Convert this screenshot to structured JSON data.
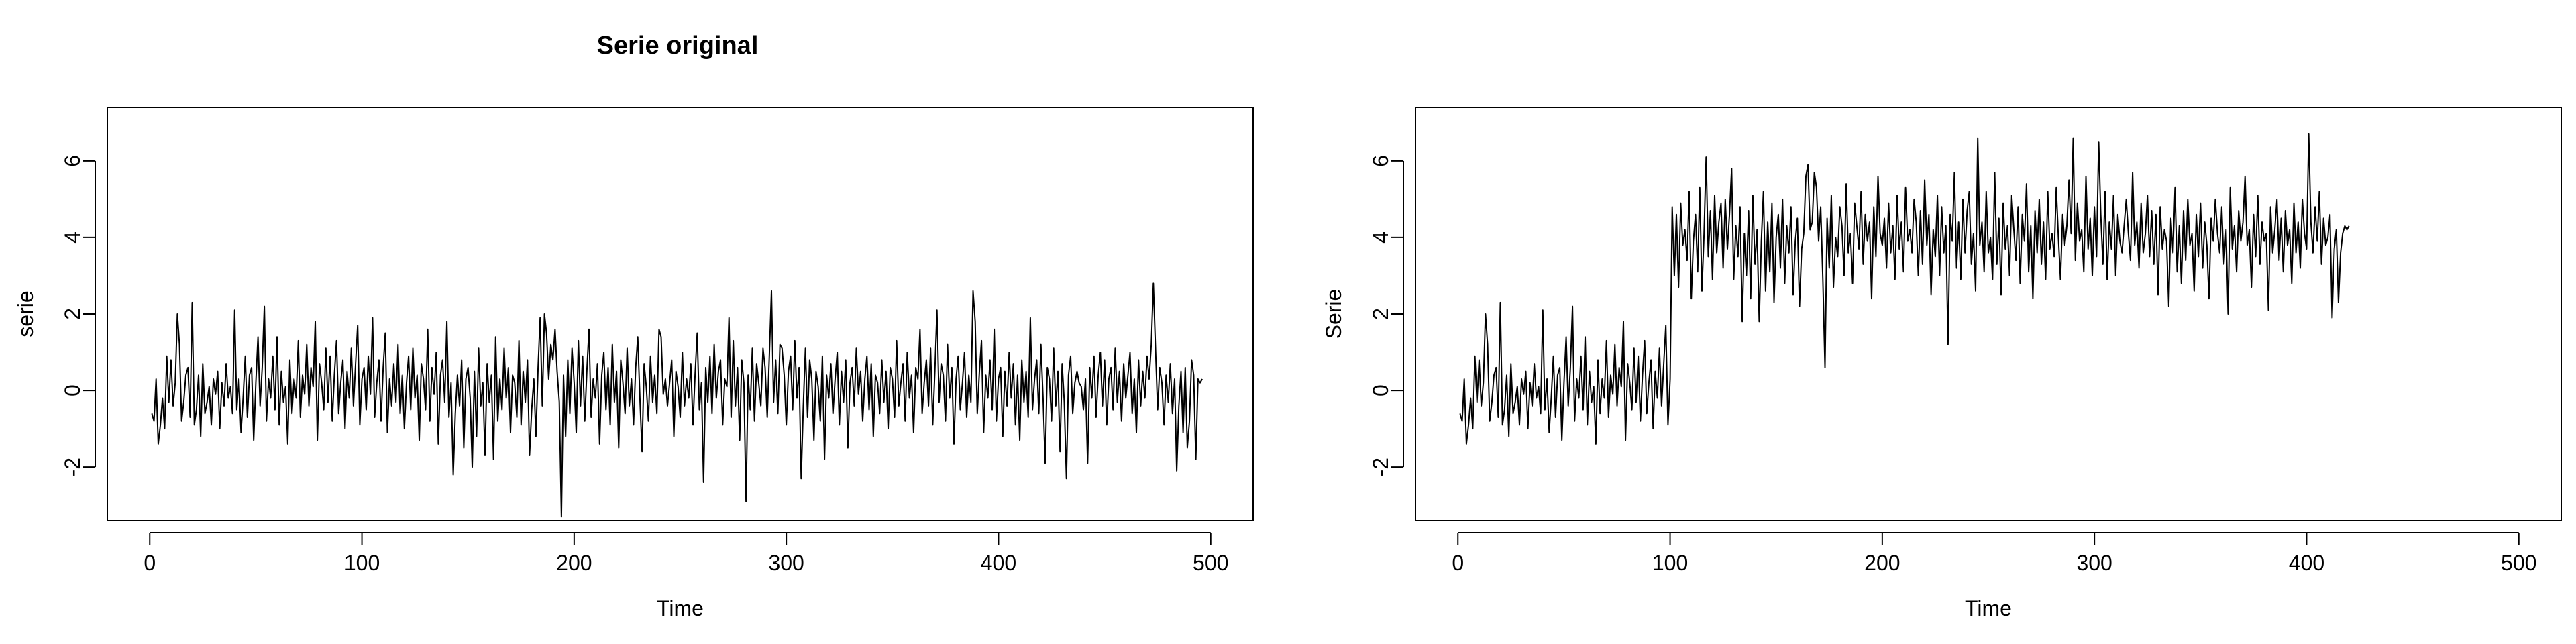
{
  "chart_data": [
    {
      "type": "line",
      "title": "Serie original",
      "xlabel": "Time",
      "ylabel": "serie",
      "xlim": [
        -20,
        520
      ],
      "ylim": [
        -3.4,
        7.4
      ],
      "xticks": [
        0,
        100,
        200,
        300,
        400,
        500
      ],
      "yticks": [
        -2,
        0,
        2,
        4,
        6
      ],
      "grid": false,
      "line_color": "#000000",
      "series": [
        {
          "values": [
            -0.6,
            -0.8,
            0.3,
            -1.4,
            -0.9,
            -0.2,
            -1.0,
            0.9,
            -0.3,
            0.8,
            -0.4,
            0.2,
            2.0,
            1.2,
            -0.8,
            -0.3,
            0.4,
            0.6,
            -0.7,
            2.3,
            -0.9,
            -0.5,
            0.4,
            -1.2,
            0.7,
            -0.6,
            -0.3,
            0.1,
            -0.9,
            0.3,
            -0.1,
            0.5,
            -1.0,
            0.2,
            -0.4,
            0.7,
            -0.2,
            0.1,
            -0.6,
            2.1,
            -0.5,
            0.3,
            -1.1,
            -0.2,
            0.9,
            -0.7,
            0.4,
            0.6,
            -1.3,
            0.2,
            1.4,
            -0.4,
            0.6,
            2.2,
            -0.8,
            0.3,
            -0.2,
            0.9,
            -0.5,
            1.4,
            -0.9,
            0.5,
            -0.3,
            0.1,
            -1.4,
            0.8,
            -0.6,
            0.3,
            -0.2,
            1.3,
            -0.7,
            0.4,
            -0.1,
            1.2,
            -0.4,
            0.6,
            0.1,
            1.8,
            -1.3,
            0.7,
            0.2,
            -0.5,
            1.1,
            -0.3,
            0.9,
            -0.8,
            0.4,
            1.3,
            -0.6,
            0.2,
            0.8,
            -1.0,
            0.5,
            -0.2,
            1.1,
            -0.4,
            0.7,
            1.7,
            -0.9,
            0.3,
            0.6,
            -0.5,
            0.9,
            -0.1,
            1.9,
            -0.7,
            0.2,
            0.8,
            -0.8,
            0.6,
            1.5,
            -1.1,
            0.3,
            -0.4,
            0.7,
            -0.3,
            1.2,
            -0.6,
            0.4,
            -1.0,
            0.2,
            0.9,
            -0.5,
            1.1,
            -0.2,
            0.4,
            -1.3,
            0.7,
            0.3,
            -0.5,
            1.6,
            -0.8,
            0.6,
            -0.1,
            1.0,
            -1.4,
            0.4,
            0.8,
            -0.3,
            1.8,
            -0.7,
            0.2,
            -2.2,
            -0.6,
            0.4,
            -0.4,
            0.8,
            -1.5,
            0.3,
            0.6,
            -0.2,
            -2.0,
            0.5,
            -1.2,
            1.1,
            -0.4,
            0.2,
            -1.7,
            0.7,
            -0.3,
            0.4,
            -1.8,
            1.4,
            -0.8,
            0.3,
            -0.5,
            1.1,
            -0.2,
            0.6,
            -1.1,
            0.4,
            0.2,
            -0.7,
            1.3,
            -0.9,
            0.5,
            -0.3,
            0.8,
            -1.7,
            -0.5,
            0.3,
            -1.2,
            0.6,
            1.9,
            -0.4,
            2.0,
            1.5,
            0.3,
            1.2,
            0.8,
            1.6,
            0.5,
            -0.3,
            -3.3,
            0.4,
            -1.2,
            0.8,
            -0.6,
            1.1,
            0.2,
            -1.1,
            1.3,
            -0.4,
            0.9,
            -0.8,
            0.5,
            1.6,
            -0.7,
            0.3,
            -0.2,
            0.7,
            -1.4,
            0.4,
            1.0,
            -0.5,
            0.6,
            -0.9,
            1.2,
            -0.3,
            0.5,
            -1.5,
            0.8,
            0.2,
            -0.6,
            1.1,
            -0.4,
            0.3,
            -0.9,
            0.6,
            1.4,
            -0.2,
            -1.6,
            0.7,
            0.1,
            -0.8,
            0.9,
            -0.3,
            0.4,
            -0.6,
            1.6,
            1.4,
            -0.1,
            0.3,
            -0.4,
            0.2,
            0.8,
            -1.2,
            0.5,
            0.1,
            -0.7,
            1.0,
            -0.4,
            0.3,
            -0.2,
            0.7,
            -0.9,
            0.4,
            1.5,
            -0.5,
            0.2,
            -2.4,
            0.6,
            -0.3,
            0.9,
            -0.6,
            1.2,
            -0.2,
            0.5,
            0.8,
            -0.9,
            0.3,
            0.1,
            1.9,
            -0.7,
            1.3,
            -0.4,
            0.6,
            -1.3,
            0.8,
            0.2,
            -2.9,
            0.4,
            -0.5,
            1.1,
            -0.8,
            0.7,
            0.2,
            -0.4,
            1.1,
            0.6,
            -0.7,
            0.9,
            2.6,
            -0.3,
            0.8,
            -0.6,
            1.2,
            1.1,
            0.4,
            -0.9,
            0.5,
            0.9,
            -0.5,
            1.3,
            -0.2,
            0.6,
            -2.3,
            -0.4,
            1.1,
            -0.7,
            0.8,
            0.3,
            -1.3,
            0.5,
            0.1,
            -0.8,
            0.9,
            -1.8,
            0.4,
            -0.2,
            0.7,
            -0.6,
            0.3,
            1.0,
            -0.9,
            0.5,
            -0.3,
            0.8,
            -1.5,
            0.2,
            0.6,
            -0.4,
            1.1,
            -0.1,
            0.5,
            -0.8,
            0.3,
            0.9,
            -0.5,
            0.7,
            -1.2,
            0.4,
            0.2,
            -0.6,
            0.8,
            -0.3,
            0.5,
            -1.0,
            0.6,
            0.3,
            -0.7,
            1.3,
            -0.4,
            0.2,
            0.7,
            -0.8,
            1.0,
            -0.2,
            0.4,
            -1.1,
            0.6,
            0.3,
            1.6,
            -0.6,
            0.2,
            0.8,
            -0.4,
            1.1,
            -0.9,
            0.5,
            2.1,
            -0.3,
            0.7,
            0.4,
            -0.8,
            1.2,
            -0.2,
            0.6,
            -1.4,
            0.3,
            0.9,
            -0.5,
            0.2,
            1.0,
            -0.7,
            0.4,
            -0.3,
            2.6,
            1.8,
            -0.6,
            0.5,
            1.3,
            -1.1,
            0.4,
            -0.2,
            0.8,
            -0.5,
            1.6,
            -0.8,
            0.3,
            0.6,
            -1.2,
            0.5,
            -0.4,
            1.0,
            -0.2,
            0.7,
            -0.9,
            0.4,
            -1.3,
            0.8,
            -0.3,
            0.5,
            -0.7,
            1.9,
            -0.5,
            0.3,
            0.8,
            -0.6,
            1.2,
            -0.2,
            -1.9,
            0.6,
            0.3,
            -0.8,
            1.1,
            -0.4,
            0.5,
            -1.6,
            0.7,
            -0.3,
            -2.3,
            0.4,
            0.9,
            -0.6,
            0.2,
            0.5,
            0.2,
            0.1,
            -0.5,
            0.3,
            -1.9,
            0.6,
            -0.2,
            0.9,
            -0.7,
            0.4,
            1.0,
            -0.4,
            0.8,
            -0.9,
            0.3,
            0.6,
            -0.5,
            1.1,
            -0.3,
            0.5,
            -0.8,
            0.7,
            -0.2,
            0.4,
            1.0,
            -0.6,
            0.3,
            -1.1,
            0.8,
            -0.4,
            0.5,
            -0.2,
            0.9,
            0.3,
            1.2,
            2.8,
            1.1,
            -0.5,
            0.6,
            0.2,
            -0.9,
            0.4,
            -0.3,
            0.7,
            -0.6,
            0.3,
            -2.1,
            -0.4,
            0.5,
            -1.1,
            0.6,
            -1.5,
            -0.8,
            0.8,
            0.4,
            -1.8,
            0.3,
            0.2,
            0.3
          ]
        }
      ]
    },
    {
      "type": "line",
      "title": "",
      "xlabel": "Time",
      "ylabel": "Serie",
      "xlim": [
        -20,
        520
      ],
      "ylim": [
        -3.4,
        7.4
      ],
      "xticks": [
        0,
        100,
        200,
        300,
        400,
        500
      ],
      "yticks": [
        -2,
        0,
        2,
        4,
        6
      ],
      "grid": false,
      "line_color": "#000000",
      "series": [
        {
          "values": [
            -0.6,
            -0.8,
            0.3,
            -1.4,
            -0.9,
            -0.2,
            -1.0,
            0.9,
            -0.3,
            0.8,
            -0.4,
            0.2,
            2.0,
            1.2,
            -0.8,
            -0.3,
            0.4,
            0.6,
            -0.7,
            2.3,
            -0.9,
            -0.5,
            0.4,
            -1.2,
            0.7,
            -0.6,
            -0.3,
            0.1,
            -0.9,
            0.3,
            -0.1,
            0.5,
            -1.0,
            0.2,
            -0.4,
            0.7,
            -0.2,
            0.1,
            -0.6,
            2.1,
            -0.5,
            0.3,
            -1.1,
            -0.2,
            0.9,
            -0.7,
            0.4,
            0.6,
            -1.3,
            0.2,
            1.4,
            -0.4,
            0.6,
            2.2,
            -0.8,
            0.3,
            -0.2,
            0.9,
            -0.5,
            1.4,
            -0.9,
            0.5,
            -0.3,
            0.1,
            -1.4,
            0.8,
            -0.6,
            0.3,
            -0.2,
            1.3,
            -0.7,
            0.4,
            -0.1,
            1.2,
            -0.4,
            0.6,
            0.1,
            1.8,
            -1.3,
            0.7,
            0.2,
            -0.5,
            1.1,
            -0.3,
            0.9,
            -0.8,
            0.4,
            1.3,
            -0.6,
            0.2,
            0.8,
            -1.0,
            0.5,
            -0.2,
            1.1,
            -0.4,
            0.7,
            1.7,
            -0.9,
            0.3,
            4.8,
            3.0,
            4.6,
            2.7,
            4.9,
            3.8,
            4.2,
            3.4,
            5.2,
            2.4,
            3.9,
            4.6,
            3.1,
            5.3,
            2.6,
            4.1,
            6.1,
            3.5,
            4.7,
            2.9,
            5.1,
            3.6,
            4.4,
            4.9,
            3.2,
            5.0,
            3.7,
            4.6,
            5.8,
            2.9,
            4.3,
            3.5,
            4.8,
            1.8,
            4.1,
            3.0,
            4.7,
            2.4,
            5.1,
            3.3,
            4.2,
            1.8,
            3.9,
            5.2,
            2.6,
            4.4,
            3.1,
            4.9,
            2.3,
            4.0,
            4.6,
            3.2,
            5.0,
            2.8,
            4.3,
            3.6,
            4.8,
            2.5,
            3.9,
            4.5,
            2.2,
            3.7,
            4.1,
            5.6,
            5.9,
            4.2,
            4.4,
            5.7,
            5.3,
            3.9,
            4.8,
            2.9,
            0.6,
            4.5,
            3.2,
            5.1,
            2.7,
            4.0,
            3.5,
            4.8,
            4.3,
            3.0,
            5.4,
            3.6,
            4.1,
            2.8,
            4.9,
            4.3,
            3.7,
            5.2,
            3.3,
            4.6,
            3.9,
            4.4,
            2.4,
            4.8,
            3.5,
            5.6,
            4.1,
            3.8,
            4.5,
            3.2,
            4.9,
            3.6,
            4.3,
            2.9,
            5.1,
            3.7,
            4.4,
            3.1,
            5.3,
            3.9,
            4.2,
            3.6,
            5.0,
            4.4,
            3.0,
            4.7,
            3.3,
            5.5,
            3.8,
            4.6,
            2.5,
            4.2,
            3.5,
            5.1,
            3.0,
            4.8,
            3.6,
            4.3,
            1.2,
            4.6,
            3.9,
            5.7,
            3.2,
            4.4,
            2.9,
            5.0,
            3.6,
            4.7,
            5.2,
            3.3,
            4.1,
            2.6,
            6.6,
            3.8,
            4.4,
            3.1,
            5.2,
            3.6,
            4.0,
            2.9,
            5.7,
            3.3,
            4.5,
            2.5,
            4.9,
            3.7,
            4.3,
            3.0,
            5.1,
            4.2,
            3.4,
            4.8,
            2.8,
            4.6,
            3.9,
            5.4,
            3.1,
            4.3,
            2.4,
            4.7,
            3.6,
            5.0,
            3.3,
            4.4,
            2.9,
            5.2,
            3.7,
            4.1,
            3.5,
            5.3,
            4.0,
            2.9,
            4.6,
            3.8,
            4.3,
            5.5,
            4.1,
            6.6,
            3.4,
            4.9,
            3.9,
            4.2,
            3.1,
            5.6,
            3.7,
            4.5,
            3.0,
            4.8,
            3.5,
            6.5,
            4.6,
            3.3,
            5.2,
            2.9,
            4.4,
            3.7,
            5.1,
            3.0,
            4.6,
            3.9,
            3.6,
            4.3,
            5.0,
            4.1,
            3.4,
            5.7,
            3.8,
            4.4,
            3.2,
            4.9,
            3.6,
            4.1,
            5.1,
            3.5,
            4.7,
            3.3,
            4.6,
            2.5,
            4.8,
            3.7,
            4.2,
            3.9,
            2.2,
            4.5,
            3.6,
            5.3,
            3.1,
            4.3,
            2.8,
            4.7,
            3.4,
            5.0,
            3.8,
            4.1,
            2.6,
            4.6,
            3.5,
            4.9,
            3.2,
            4.4,
            3.8,
            2.4,
            4.5,
            3.9,
            5.0,
            4.1,
            3.6,
            4.8,
            3.3,
            4.2,
            2.0,
            5.3,
            3.7,
            4.3,
            3.1,
            4.7,
            3.9,
            4.4,
            5.6,
            3.8,
            4.2,
            2.7,
            4.6,
            3.5,
            5.1,
            3.3,
            4.4,
            3.9,
            4.1,
            2.1,
            4.8,
            3.6,
            4.2,
            5.0,
            3.4,
            4.5,
            3.1,
            4.7,
            3.8,
            4.2,
            2.8,
            4.9,
            3.6,
            4.4,
            3.2,
            5.0,
            4.1,
            3.7,
            6.7,
            4.4,
            3.6,
            4.8,
            3.9,
            5.2,
            3.3,
            4.5,
            3.8,
            4.0,
            4.6,
            1.9,
            3.7,
            4.2,
            2.3,
            3.6,
            4.1,
            4.3,
            4.2,
            4.3
          ]
        }
      ]
    }
  ]
}
